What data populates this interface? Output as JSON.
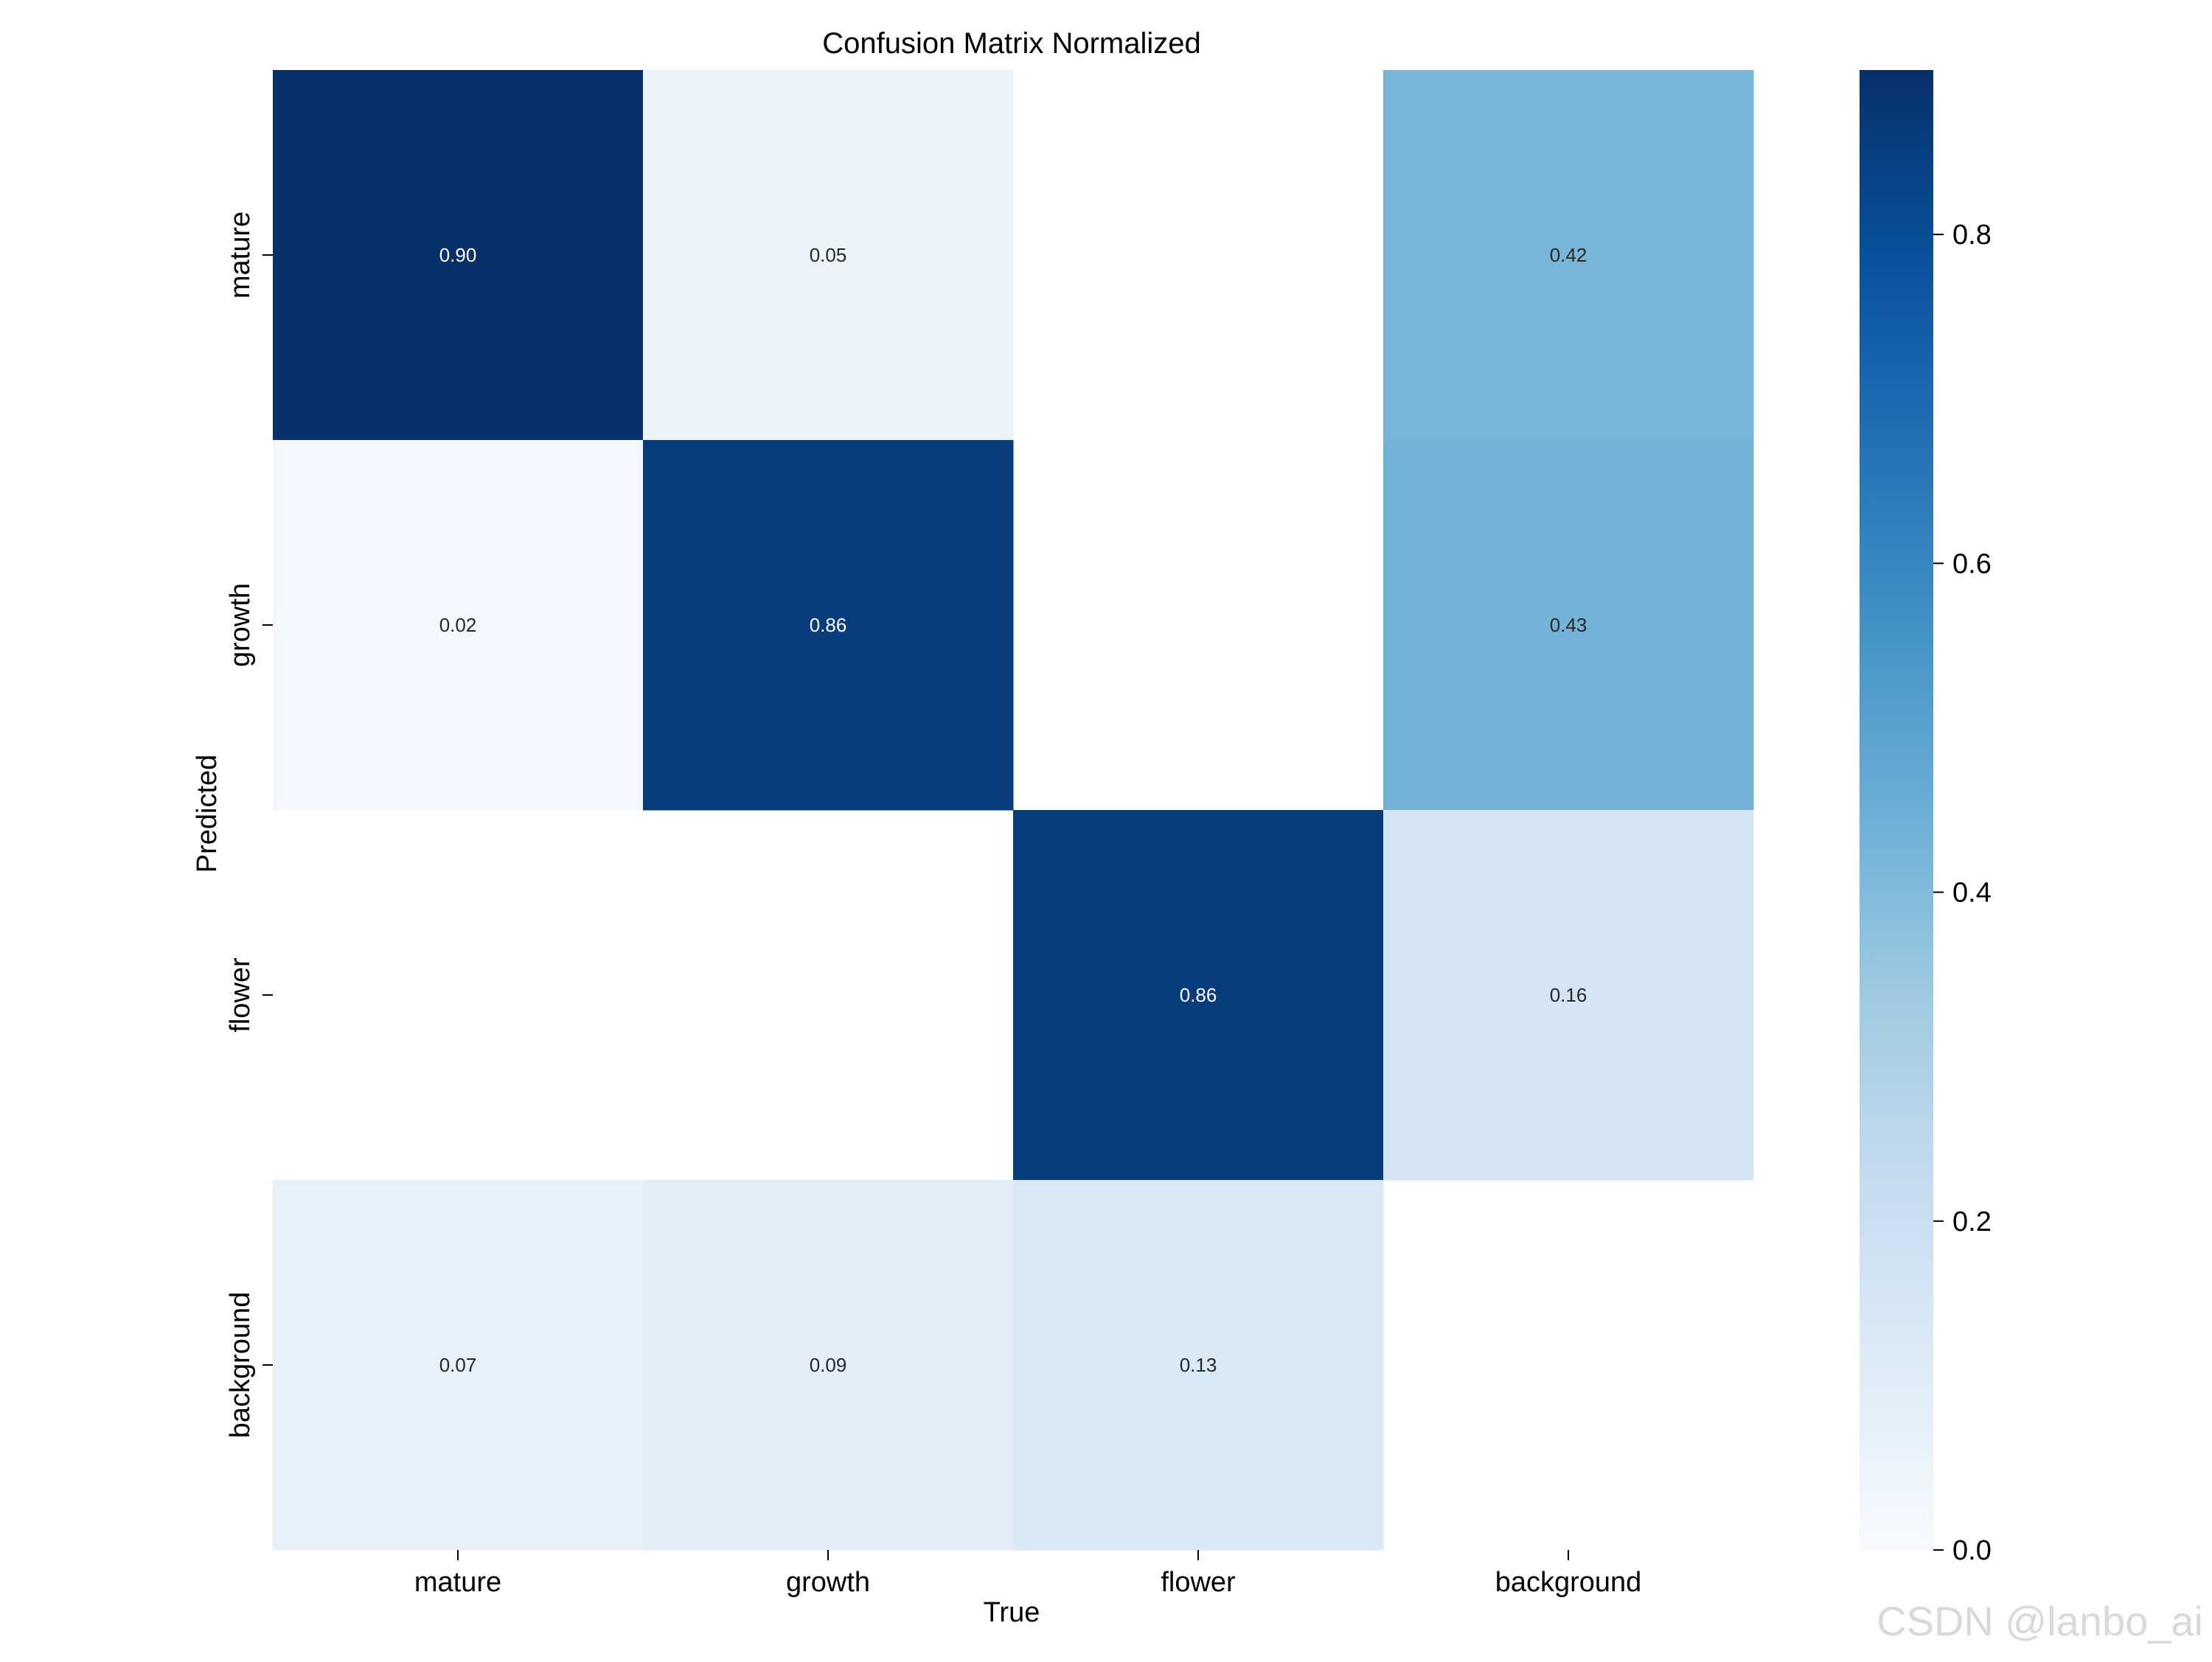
{
  "chart_data": {
    "type": "heatmap",
    "title": "Confusion Matrix Normalized",
    "xlabel": "True",
    "ylabel": "Predicted",
    "x_categories": [
      "mature",
      "growth",
      "flower",
      "background"
    ],
    "y_categories": [
      "mature",
      "growth",
      "flower",
      "background"
    ],
    "values": [
      [
        0.9,
        0.05,
        null,
        0.42
      ],
      [
        0.02,
        0.86,
        null,
        0.43
      ],
      [
        null,
        null,
        0.86,
        0.16
      ],
      [
        0.07,
        0.09,
        0.13,
        null
      ]
    ],
    "cell_labels": [
      [
        "0.90",
        "0.05",
        "",
        "0.42"
      ],
      [
        "0.02",
        "0.86",
        "",
        "0.43"
      ],
      [
        "",
        "",
        "0.86",
        "0.16"
      ],
      [
        "0.07",
        "0.09",
        "0.13",
        ""
      ]
    ],
    "colorbar": {
      "range": [
        0.0,
        0.9
      ],
      "ticks": [
        0.0,
        0.2,
        0.4,
        0.6,
        0.8
      ],
      "tick_labels": [
        "0.0",
        "0.2",
        "0.4",
        "0.6",
        "0.8"
      ],
      "colormap": "Blues"
    }
  },
  "watermark": "CSDN @lanbo_ai"
}
